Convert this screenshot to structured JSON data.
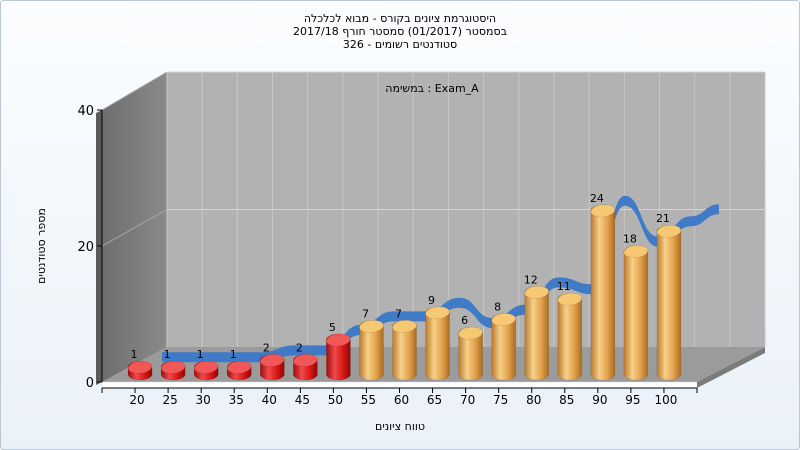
{
  "chart_data": {
    "type": "bar",
    "title_lines": [
      "היסטוגרמת ציונים בקורס - מבוא לכלכלה",
      "בסמסטר  (01/2017)  סמסטר חורף 2017/18",
      "326 - סטודנטים רשומים"
    ],
    "annotation": "במשימה : Exam_A",
    "xlabel": "טווח ציונים",
    "ylabel": "מספר סטודנטים",
    "categories": [
      "20",
      "25",
      "30",
      "35",
      "40",
      "45",
      "50",
      "55",
      "60",
      "65",
      "70",
      "75",
      "80",
      "85",
      "90",
      "95",
      "100"
    ],
    "values": [
      1,
      1,
      1,
      1,
      2,
      2,
      5,
      7,
      7,
      9,
      6,
      8,
      12,
      11,
      24,
      18,
      21
    ],
    "bar_colors": [
      "#d81515",
      "#d81515",
      "#d81515",
      "#d81515",
      "#d81515",
      "#d81515",
      "#d81515",
      "#e2a049",
      "#e2a049",
      "#e2a049",
      "#e2a049",
      "#e2a049",
      "#e2a049",
      "#e2a049",
      "#e2a049",
      "#e2a049",
      "#e2a049"
    ],
    "trend_color": "#3a78c8",
    "yticks": [
      0,
      20,
      40
    ],
    "ylim": [
      0,
      40
    ],
    "grid": true,
    "legend": "none"
  }
}
